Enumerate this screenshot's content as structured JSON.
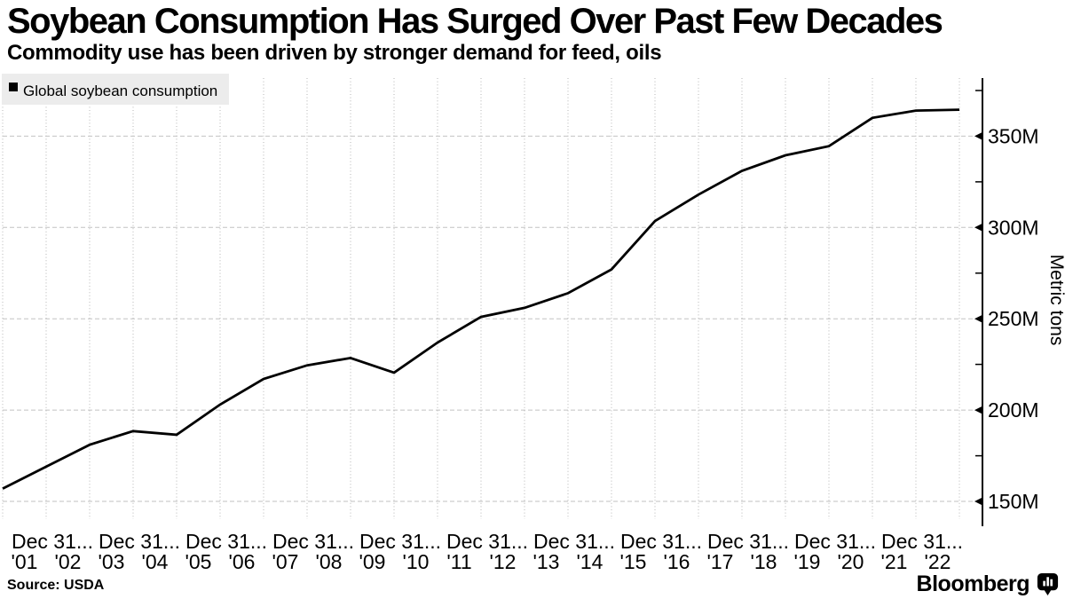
{
  "header": {
    "title": "Soybean Consumption Has Surged Over Past Few Decades",
    "subtitle": "Commodity use has been driven by stronger demand for feed, oils"
  },
  "footer": {
    "source": "Source: USDA",
    "brand": "Bloomberg",
    "brand_icon": "bloomberg-bars-icon"
  },
  "colors": {
    "text": "#000000",
    "line": "#000000",
    "legend_bg": "#ececec",
    "grid_vertical": "#b5b5b5",
    "grid_horizontal": "#c2c2c2",
    "axis": "#000000",
    "background": "#ffffff"
  },
  "chart_data": {
    "type": "line",
    "title": "Soybean Consumption Has Surged Over Past Few Decades",
    "subtitle": "Commodity use has been driven by stronger demand for feed, oils",
    "ylabel": "Metric tons",
    "yticks": [
      150,
      200,
      250,
      300,
      350
    ],
    "ytick_labels": [
      "150M",
      "200M",
      "250M",
      "300M",
      "350M"
    ],
    "y_minor_ticks": [
      175,
      225,
      275,
      325,
      375
    ],
    "ylim": [
      147,
      382
    ],
    "grid": true,
    "legend_position": "top-left",
    "legend": [
      {
        "label": "Global soybean consumption",
        "color": "#000000"
      }
    ],
    "x_interval_label": "Dec 31...",
    "x_year_labels": [
      "'01",
      "'02",
      "'03",
      "'04",
      "'05",
      "'06",
      "'07",
      "'08",
      "'09",
      "'10",
      "'11",
      "'12",
      "'13",
      "'14",
      "'15",
      "'16",
      "'17",
      "'18",
      "'19",
      "'20",
      "'21",
      "'22"
    ],
    "series": [
      {
        "name": "Global soybean consumption",
        "color": "#000000",
        "unit": "million metric tons",
        "values": [
          157,
          169,
          181,
          188.5,
          186.5,
          203,
          217,
          224.5,
          228.5,
          220.5,
          237,
          251,
          256,
          264,
          277,
          303.5,
          318,
          331,
          339.5,
          344.5,
          360,
          364,
          364.5
        ]
      }
    ]
  }
}
